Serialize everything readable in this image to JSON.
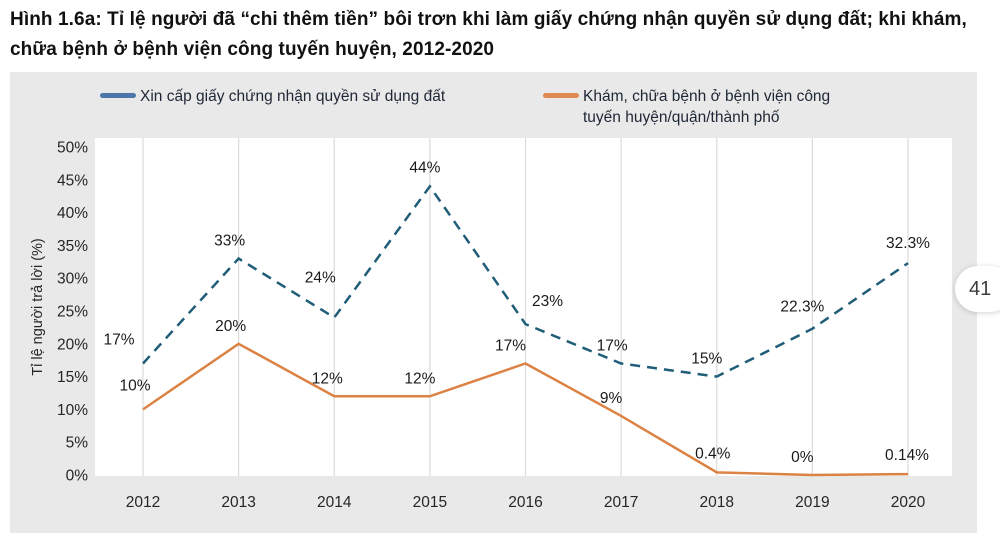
{
  "page": {
    "title_line1": "Hình 1.6a: Tỉ lệ người đã “chi thêm tiền” bôi trơn khi làm giấy chứng nhận quyền sử dụng đất; khi khám,",
    "title_line2": "chữa bệnh ở bệnh viện công tuyến huyện, 2012-2020",
    "page_number": "41"
  },
  "legend": {
    "series1_label": "Xin cấp giấy chứng nhận quyền sử dụng đất",
    "series2_label_line1": "Khám, chữa bệnh ở bệnh viện công",
    "series2_label_line2": "tuyến huyện/quận/thành phố"
  },
  "colors": {
    "panel_bg": "#e9e9e9",
    "plot_bg": "#ffffff",
    "gridline": "#dcdcdc",
    "series1_line": "#205d78",
    "series1_legend_marker": "#4e76a8",
    "series2_line": "#dc8244",
    "series2_legend_marker": "#de8a52",
    "label_text": "#1a1a1a",
    "tick_text": "#262626"
  },
  "chart_data": {
    "type": "line",
    "title": "Tỉ lệ người đã “chi thêm tiền” bôi trơn khi làm giấy chứng nhận quyền sử dụng đất; khi khám, chữa bệnh ở bệnh viện công tuyến huyện, 2012-2020",
    "categories": [
      "2012",
      "2013",
      "2014",
      "2015",
      "2016",
      "2017",
      "2018",
      "2019",
      "2020"
    ],
    "series": [
      {
        "name": "Xin cấp giấy chứng nhận quyền sử dụng đất",
        "style": "dashed",
        "color": "#205d78",
        "values": [
          17,
          33,
          24,
          44,
          23,
          17,
          15,
          22.3,
          32.3
        ],
        "labels": [
          "17%",
          "33%",
          "24%",
          "44%",
          "23%",
          "17%",
          "15%",
          "22.3%",
          "32.3%"
        ]
      },
      {
        "name": "Khám, chữa bệnh ở bệnh viện công tuyến huyện/quận/thành phố",
        "style": "solid",
        "color": "#dc8244",
        "values": [
          10,
          20,
          12,
          12,
          17,
          9,
          0.4,
          0,
          0.14
        ],
        "labels": [
          "10%",
          "20%",
          "12%",
          "12%",
          "17%",
          "9%",
          "0.4%",
          "0%",
          "0.14%"
        ]
      }
    ],
    "xlabel": "",
    "ylabel": "Tỉ lệ người trả lời (%)",
    "ylim": [
      0,
      50
    ],
    "ytick_step": 5,
    "yticks": [
      "0%",
      "5%",
      "10%",
      "15%",
      "20%",
      "25%",
      "30%",
      "35%",
      "40%",
      "45%",
      "50%"
    ],
    "grid": "vertical-only",
    "legend_position": "top"
  }
}
